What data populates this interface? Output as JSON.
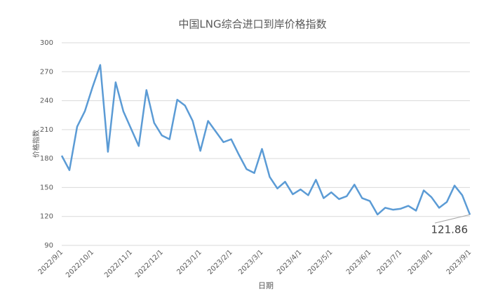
{
  "chart_data": {
    "type": "line",
    "title": "中国LNG综合进口到岸价格指数",
    "y_label": "价格指数",
    "x_label": "日期",
    "categories": [
      "2022/9/1",
      null,
      null,
      null,
      "2022/10/1",
      null,
      null,
      null,
      null,
      "2022/11/1",
      null,
      null,
      null,
      "2022/12/1",
      null,
      null,
      null,
      null,
      "2023/1/1",
      null,
      null,
      null,
      "2023/2/1",
      null,
      null,
      null,
      "2023/3/1",
      null,
      null,
      null,
      null,
      "2023/4/1",
      null,
      null,
      null,
      "2023/5/1",
      null,
      null,
      null,
      null,
      "2023/6/1",
      null,
      null,
      null,
      "2023/7/1",
      null,
      null,
      null,
      "2023/8/1",
      null,
      null,
      null,
      null,
      "2023/9/1"
    ],
    "series": [
      {
        "name": "价格指数",
        "color": "#5b9bd5",
        "values": [
          183,
          168,
          213,
          229,
          254,
          277,
          187,
          259,
          229,
          211,
          193,
          251,
          217,
          204,
          200,
          241,
          235,
          219,
          188,
          219,
          208,
          197,
          200,
          184,
          169,
          165,
          190,
          161,
          149,
          156,
          143,
          148,
          142,
          158,
          139,
          145,
          138,
          141,
          153,
          139,
          136,
          122,
          129,
          127,
          128,
          131,
          126,
          147,
          140,
          129,
          135,
          152,
          142,
          121.86
        ],
        "value_labels": [
          null,
          null,
          null,
          null,
          null,
          null,
          null,
          null,
          null,
          null,
          null,
          null,
          null,
          null,
          null,
          null,
          null,
          null,
          null,
          null,
          null,
          null,
          null,
          null,
          null,
          null,
          null,
          null,
          null,
          null,
          null,
          null,
          null,
          null,
          null,
          null,
          null,
          null,
          null,
          null,
          null,
          null,
          null,
          null,
          null,
          null,
          null,
          null,
          null,
          null,
          null,
          null,
          null,
          "121.86"
        ]
      }
    ],
    "ylim": [
      90,
      300
    ],
    "yticks": [
      90,
      120,
      150,
      180,
      210,
      240,
      270,
      300
    ],
    "grid": true
  }
}
